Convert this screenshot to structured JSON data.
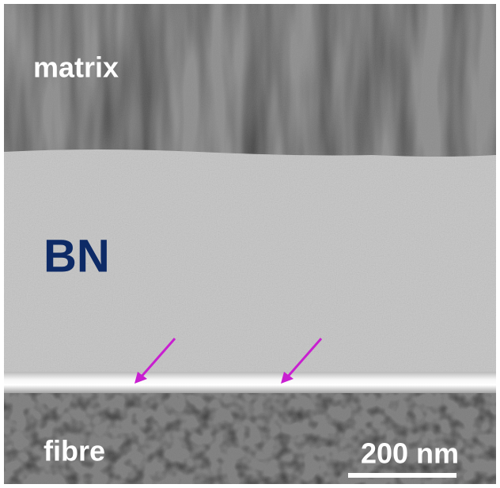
{
  "labels": {
    "matrix": "matrix",
    "bn": "BN",
    "fibre": "fibre",
    "scale_bar": "200 nm"
  }
}
